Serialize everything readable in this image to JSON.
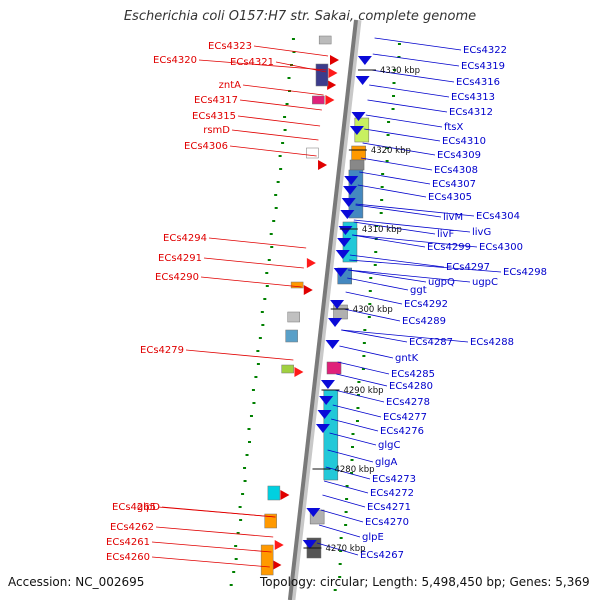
{
  "title": "Escherichia coli O157:H7 str. Sakai, complete genome",
  "footer": {
    "accession": "Accession: NC_002695",
    "topology": "Topology: circular; Length: 5,498,450 bp; Genes: 5,369"
  },
  "colors": {
    "forward_label": "#e00000",
    "reverse_label": "#0000cc",
    "backbone": "#7a7a7a",
    "tick": "#008000"
  },
  "scale_labels": [
    "4330 kbp",
    "4320 kbp",
    "4310 kbp",
    "4300 kbp",
    "4290 kbp",
    "4280 kbp",
    "4270 kbp"
  ],
  "left_genes": [
    "ECs4323",
    "ECs4320",
    "ECs4321",
    "zntA",
    "ECs4317",
    "ECs4315",
    "rsmD",
    "ECs4306",
    "ECs4294",
    "ECs4291",
    "ECs4290",
    "ECs4279",
    "glpD",
    "ECs4265",
    "ECs4262",
    "ECs4261",
    "ECs4260"
  ],
  "right_genes": [
    "ECs4322",
    "ECs4319",
    "ECs4316",
    "ECs4313",
    "ECs4312",
    "ftsX",
    "ECs4310",
    "ECs4309",
    "ECs4308",
    "ECs4307",
    "ECs4305",
    "ECs4304",
    "livM",
    "livF",
    "livG",
    "ECs4299",
    "ECs4300",
    "ECs4297",
    "ECs4298",
    "ugpQ",
    "ugpC",
    "ggt",
    "ECs4292",
    "ECs4289",
    "ECs4287",
    "ECs4288",
    "gntK",
    "ECs4285",
    "ECs4280",
    "ECs4278",
    "ECs4277",
    "ECs4276",
    "glgC",
    "glgA",
    "ECs4273",
    "ECs4272",
    "ECs4271",
    "ECs4270",
    "glpE",
    "ECs4267"
  ]
}
